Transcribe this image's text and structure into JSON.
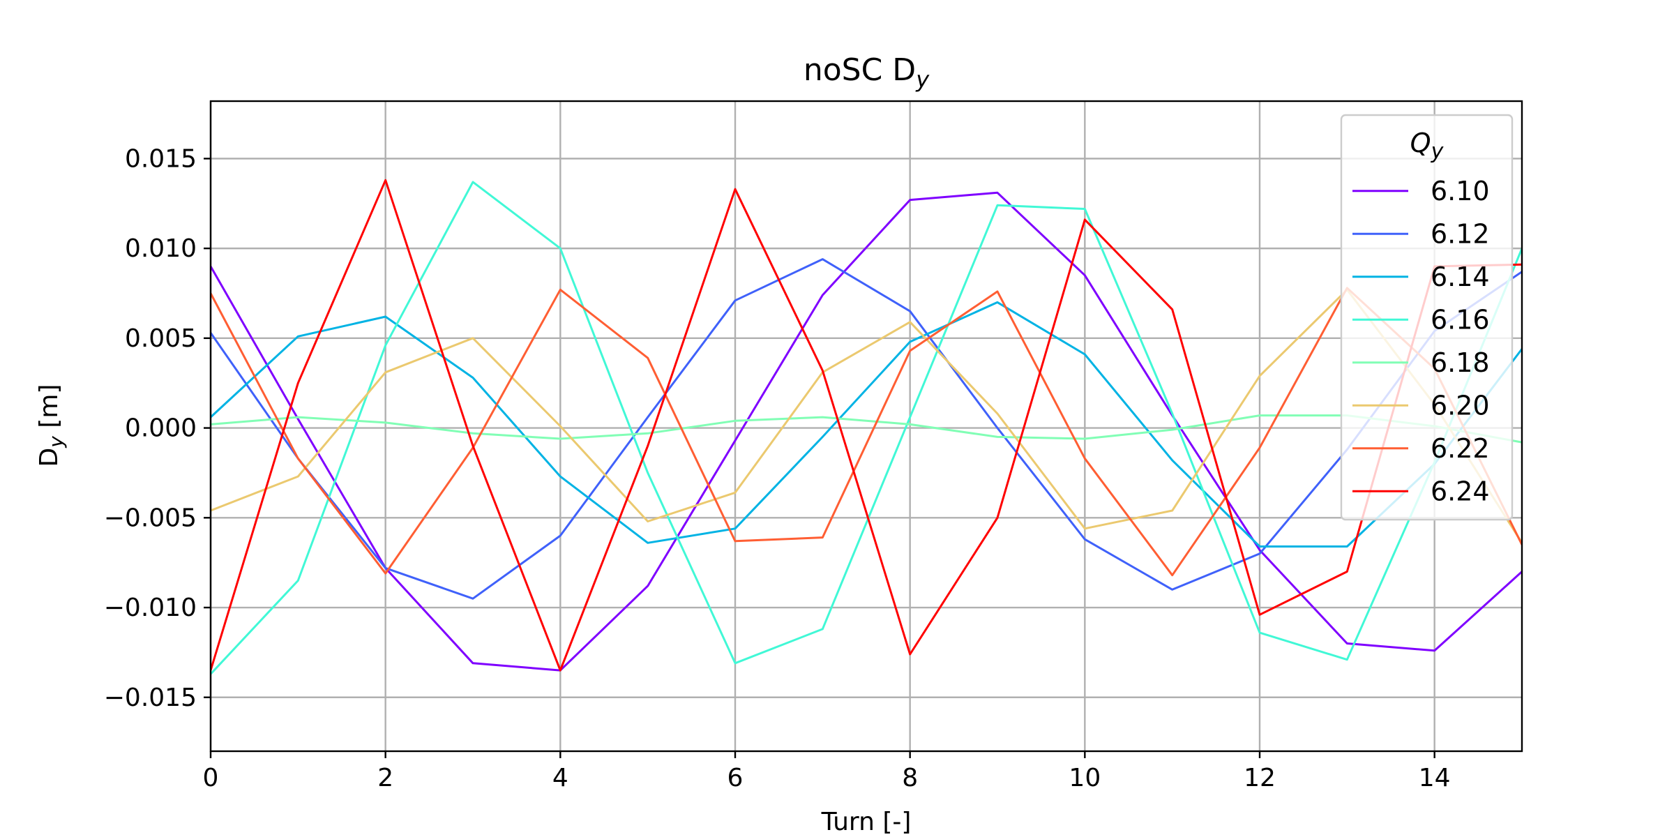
{
  "chart_data": {
    "type": "line",
    "title": "noSC D",
    "title_sub": "y",
    "xlabel": "Turn [-]",
    "ylabel": "D",
    "ylabel_sub": "y",
    "ylabel_unit": " [m]",
    "xlim": [
      0,
      15
    ],
    "ylim": [
      -0.018,
      0.0182
    ],
    "xticks": [
      0,
      2,
      4,
      6,
      8,
      10,
      12,
      14
    ],
    "xtick_labels": [
      "0",
      "2",
      "4",
      "6",
      "8",
      "10",
      "12",
      "14"
    ],
    "yticks": [
      0.015,
      0.01,
      0.005,
      0.0,
      -0.005,
      -0.01,
      -0.015
    ],
    "ytick_labels": [
      "0.015",
      "0.010",
      "0.005",
      "0.000",
      "−0.005",
      "−0.010",
      "−0.015"
    ],
    "grid": true,
    "legend": {
      "title": "Q",
      "title_sub": "y",
      "placement": "top-right"
    },
    "x": [
      0,
      1,
      2,
      3,
      4,
      5,
      6,
      7,
      8,
      9,
      10,
      11,
      12,
      13,
      14,
      15
    ],
    "series": [
      {
        "name": "6.10",
        "color": "#7f00ff",
        "values": [
          0.009,
          0.0005,
          -0.0078,
          -0.0131,
          -0.0135,
          -0.0088,
          -0.0007,
          0.0074,
          0.0127,
          0.0131,
          0.0085,
          0.0007,
          -0.0068,
          -0.012,
          -0.0124,
          -0.008
        ]
      },
      {
        "name": "6.12",
        "color": "#3f61fa",
        "values": [
          0.0053,
          -0.0017,
          -0.0078,
          -0.0095,
          -0.006,
          0.0006,
          0.0071,
          0.0094,
          0.0065,
          0.0,
          -0.0062,
          -0.009,
          -0.007,
          -0.0012,
          0.0054,
          0.0087
        ]
      },
      {
        "name": "6.14",
        "color": "#01b3e4",
        "values": [
          0.0006,
          0.0051,
          0.0062,
          0.0028,
          -0.0027,
          -0.0064,
          -0.0056,
          -0.0005,
          0.0048,
          0.007,
          0.0041,
          -0.0018,
          -0.0066,
          -0.0066,
          -0.002,
          0.0044
        ]
      },
      {
        "name": "6.16",
        "color": "#41f8d6",
        "values": [
          -0.0137,
          -0.0085,
          0.0046,
          0.0137,
          0.01,
          -0.0025,
          -0.0131,
          -0.0112,
          0.0006,
          0.0124,
          0.0122,
          0.0008,
          -0.0114,
          -0.0129,
          -0.0019,
          0.01
        ]
      },
      {
        "name": "6.18",
        "color": "#81feb5",
        "values": [
          0.0002,
          0.0006,
          0.0003,
          -0.0003,
          -0.0006,
          -0.0003,
          0.0004,
          0.0006,
          0.0002,
          -0.0005,
          -0.0006,
          -0.0001,
          0.0007,
          0.0007,
          0.0001,
          -0.0008
        ]
      },
      {
        "name": "6.20",
        "color": "#ebc96f",
        "values": [
          -0.0046,
          -0.0027,
          0.0031,
          0.005,
          0.0001,
          -0.0052,
          -0.0036,
          0.0031,
          0.0059,
          0.0008,
          -0.0056,
          -0.0046,
          0.0029,
          0.0077,
          0.0013,
          -0.0064
        ]
      },
      {
        "name": "6.22",
        "color": "#ff5e33",
        "values": [
          0.0075,
          -0.0017,
          -0.0081,
          -0.0011,
          0.0077,
          0.0039,
          -0.0063,
          -0.0061,
          0.0043,
          0.0076,
          -0.0017,
          -0.0082,
          -0.0011,
          0.0078,
          0.0033,
          -0.0065
        ]
      },
      {
        "name": "6.24",
        "color": "#ff0000",
        "values": [
          -0.0135,
          0.0025,
          0.0138,
          -0.001,
          -0.0135,
          -0.001,
          0.0133,
          0.0032,
          -0.0126,
          -0.005,
          0.0116,
          0.0066,
          -0.0104,
          -0.008,
          0.009,
          0.0091
        ]
      }
    ]
  }
}
